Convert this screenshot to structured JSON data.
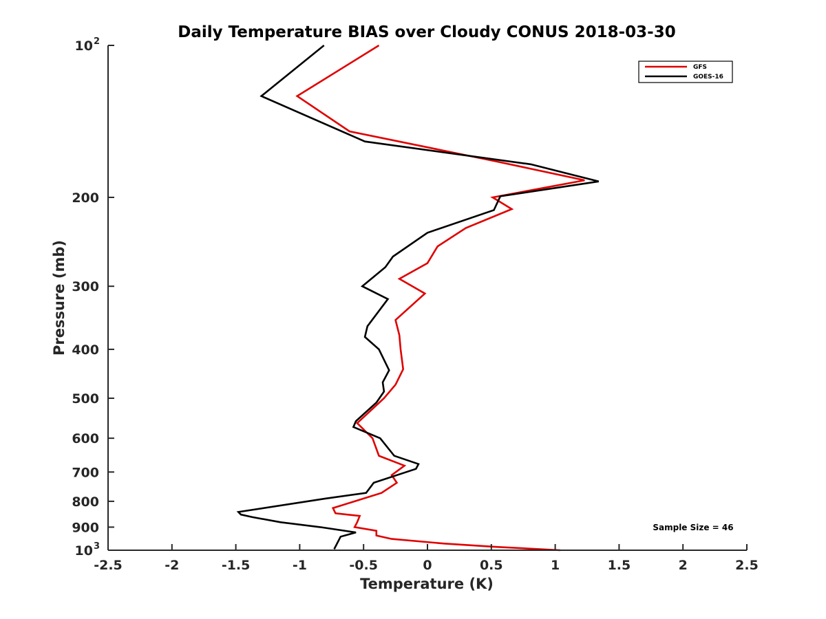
{
  "chart_data": {
    "type": "line",
    "title": "Daily Temperature BIAS over Cloudy CONUS 2018-03-30",
    "xlabel": "Temperature (K)",
    "ylabel": "Pressure (mb)",
    "xlim": [
      -2.5,
      2.5
    ],
    "ylim": [
      100,
      1000
    ],
    "y_scale": "log",
    "y_reversed": true,
    "x_ticks": [
      -2.5,
      -2,
      -1.5,
      -1,
      -0.5,
      0,
      0.5,
      1,
      1.5,
      2,
      2.5
    ],
    "x_tick_labels": [
      "-2.5",
      "-2",
      "-1.5",
      "-1",
      "-0.5",
      "0",
      "0.5",
      "1",
      "1.5",
      "2",
      "2.5"
    ],
    "y_ticks": [
      {
        "value": 100,
        "base": "10",
        "exp": "2"
      },
      {
        "value": 200,
        "label": "200"
      },
      {
        "value": 300,
        "label": "300"
      },
      {
        "value": 400,
        "label": "400"
      },
      {
        "value": 500,
        "label": "500"
      },
      {
        "value": 600,
        "label": "600"
      },
      {
        "value": 700,
        "label": "700"
      },
      {
        "value": 800,
        "label": "800"
      },
      {
        "value": 900,
        "label": "900"
      },
      {
        "value": 1000,
        "base": "10",
        "exp": "3"
      }
    ],
    "grid": false,
    "legend_position": "top-right",
    "annotation": "Sample Size = 46",
    "series": [
      {
        "name": "GFS",
        "color": "#e00000",
        "points": [
          [
            -0.38,
            100
          ],
          [
            -1.02,
            126
          ],
          [
            -0.61,
            148
          ],
          [
            0.55,
            170
          ],
          [
            1.23,
            185
          ],
          [
            0.51,
            200
          ],
          [
            0.66,
            211
          ],
          [
            0.3,
            230
          ],
          [
            0.08,
            250
          ],
          [
            0.0,
            270
          ],
          [
            -0.22,
            290
          ],
          [
            -0.02,
            310
          ],
          [
            -0.25,
            350
          ],
          [
            -0.22,
            375
          ],
          [
            -0.21,
            400
          ],
          [
            -0.19,
            438
          ],
          [
            -0.25,
            470
          ],
          [
            -0.34,
            500
          ],
          [
            -0.55,
            560
          ],
          [
            -0.43,
            600
          ],
          [
            -0.38,
            650
          ],
          [
            -0.18,
            680
          ],
          [
            -0.28,
            710
          ],
          [
            -0.24,
            735
          ],
          [
            -0.36,
            770
          ],
          [
            -0.74,
            825
          ],
          [
            -0.72,
            845
          ],
          [
            -0.53,
            855
          ],
          [
            -0.55,
            880
          ],
          [
            -0.57,
            900
          ],
          [
            -0.4,
            915
          ],
          [
            -0.4,
            935
          ],
          [
            -0.28,
            950
          ],
          [
            0.13,
            970
          ],
          [
            0.54,
            985
          ],
          [
            1.04,
            1000
          ]
        ]
      },
      {
        "name": "GOES-16",
        "color": "#000000",
        "points": [
          [
            -0.81,
            100
          ],
          [
            -1.3,
            126
          ],
          [
            -0.49,
            155
          ],
          [
            0.81,
            172
          ],
          [
            1.34,
            186
          ],
          [
            0.57,
            199
          ],
          [
            0.52,
            212
          ],
          [
            0.0,
            235
          ],
          [
            -0.27,
            262
          ],
          [
            -0.33,
            275
          ],
          [
            -0.51,
            300
          ],
          [
            -0.31,
            318
          ],
          [
            -0.47,
            360
          ],
          [
            -0.49,
            378
          ],
          [
            -0.38,
            400
          ],
          [
            -0.3,
            440
          ],
          [
            -0.35,
            465
          ],
          [
            -0.34,
            485
          ],
          [
            -0.4,
            510
          ],
          [
            -0.56,
            555
          ],
          [
            -0.58,
            570
          ],
          [
            -0.37,
            600
          ],
          [
            -0.26,
            650
          ],
          [
            -0.07,
            675
          ],
          [
            -0.09,
            690
          ],
          [
            -0.42,
            735
          ],
          [
            -0.48,
            770
          ],
          [
            -0.8,
            790
          ],
          [
            -1.48,
            840
          ],
          [
            -1.46,
            850
          ],
          [
            -1.37,
            860
          ],
          [
            -1.15,
            880
          ],
          [
            -0.84,
            900
          ],
          [
            -0.56,
            922
          ],
          [
            -0.68,
            940
          ],
          [
            -0.73,
            995
          ]
        ]
      }
    ]
  },
  "colors": {
    "axis": "#262626",
    "gfs": "#e00000",
    "goes16": "#000000"
  }
}
